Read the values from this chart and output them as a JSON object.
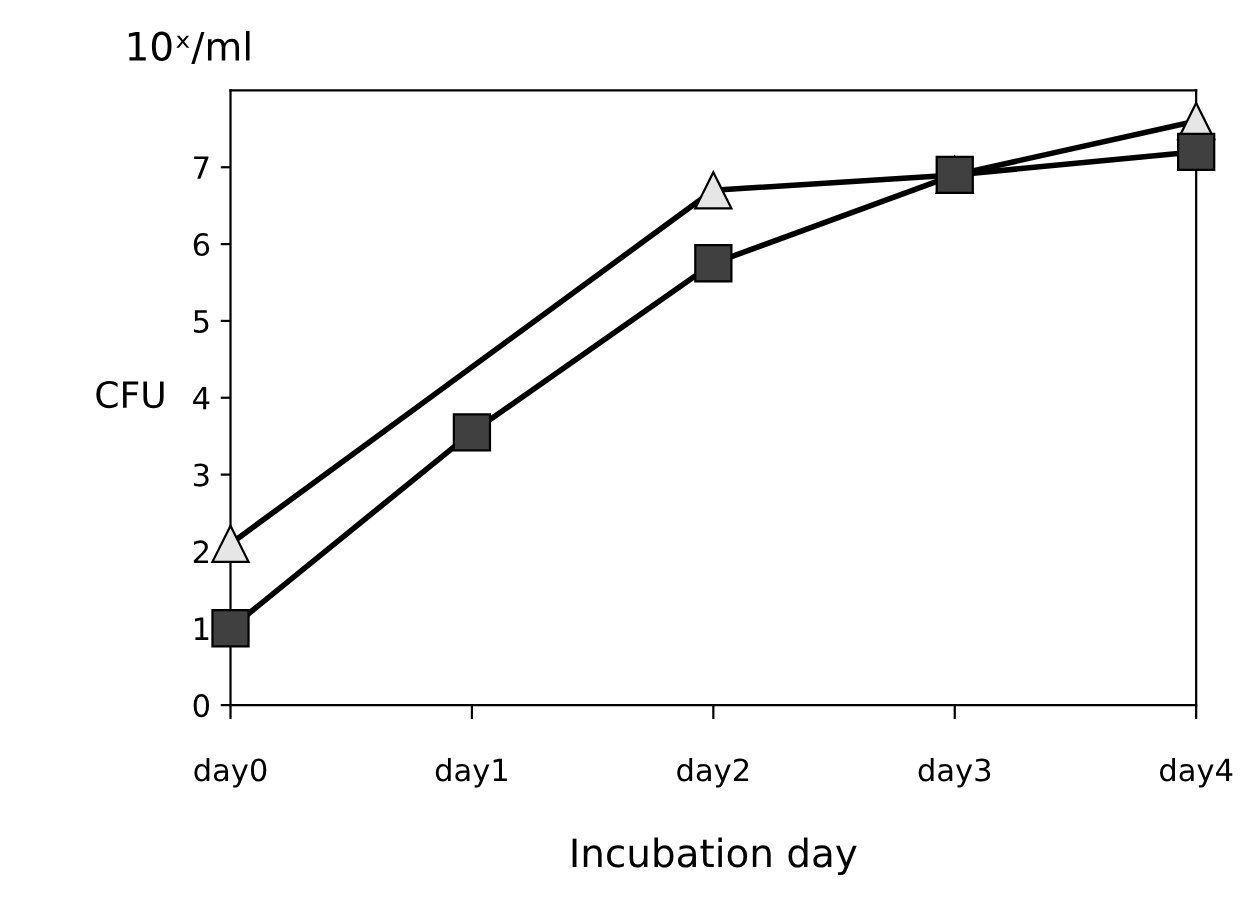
{
  "chart_data": {
    "type": "line",
    "xlabel": "Incubation day",
    "ylabel": "CFU",
    "annotations": [
      "10ˣ/ml"
    ],
    "categories": [
      "day0",
      "day1",
      "day2",
      "day3",
      "day4"
    ],
    "series": [
      {
        "color": "#e6e6e6",
        "marker": "triangle",
        "values": [
          2.1,
          null,
          6.7,
          6.9,
          7.6
        ]
      },
      {
        "color": "#404040",
        "marker": "square",
        "values": [
          1.0,
          3.55,
          5.75,
          6.9,
          7.2
        ]
      }
    ],
    "ylim": [
      0,
      8
    ],
    "yticks": [
      0,
      1,
      2,
      3,
      4,
      5,
      6,
      7
    ],
    "grid": false,
    "legend": false,
    "line_style": "solid"
  }
}
